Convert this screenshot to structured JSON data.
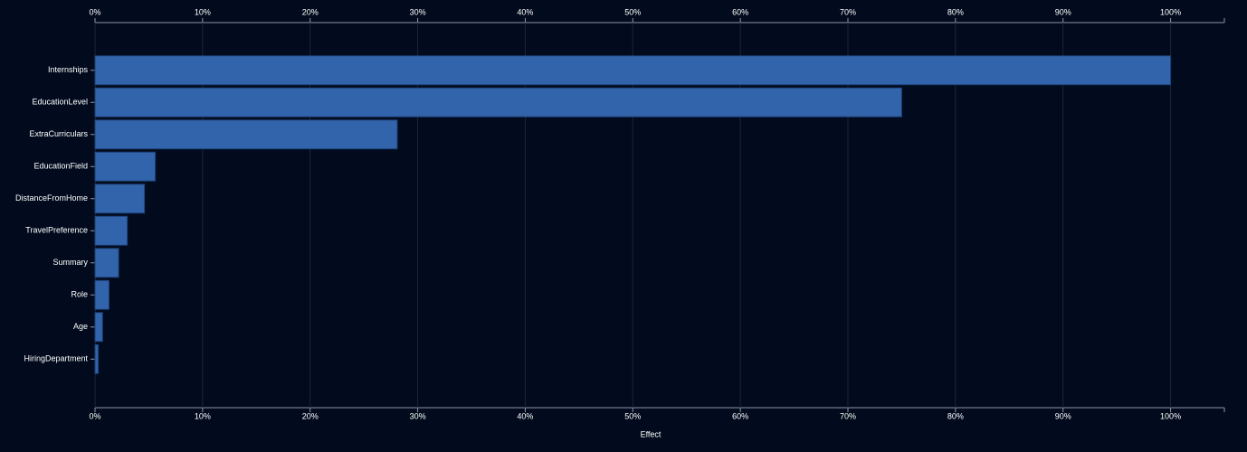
{
  "chart_data": {
    "type": "bar",
    "orientation": "horizontal",
    "x_label": "Effect",
    "categories": [
      "Internships",
      "EducationLevel",
      "ExtraCurriculars",
      "EducationField",
      "DistanceFromHome",
      "TravelPreference",
      "Summary",
      "Role",
      "Age",
      "HiringDepartment"
    ],
    "values": [
      100,
      75,
      28.1,
      5.6,
      4.6,
      3.0,
      2.2,
      1.3,
      0.7,
      0.3
    ],
    "color": "#3264ab",
    "xlim": [
      0,
      105
    ],
    "xticks": [
      {
        "value": 0,
        "label": "0%"
      },
      {
        "value": 10,
        "label": "10%"
      },
      {
        "value": 20,
        "label": "20%"
      },
      {
        "value": 30,
        "label": "30%"
      },
      {
        "value": 40,
        "label": "40%"
      },
      {
        "value": 50,
        "label": "50%"
      },
      {
        "value": 60,
        "label": "60%"
      },
      {
        "value": 70,
        "label": "70%"
      },
      {
        "value": 80,
        "label": "80%"
      },
      {
        "value": 90,
        "label": "90%"
      },
      {
        "value": 100,
        "label": "100%"
      }
    ],
    "grid": true
  }
}
